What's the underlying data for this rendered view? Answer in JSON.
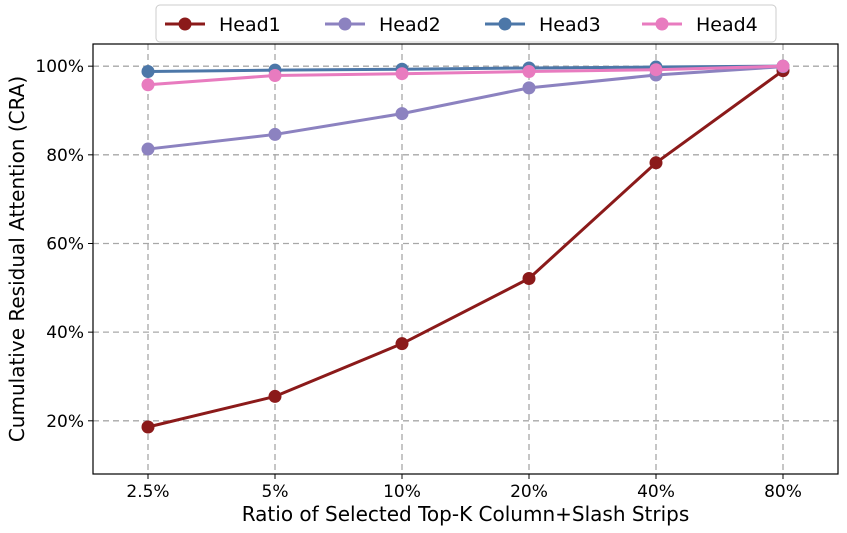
{
  "chart_data": {
    "type": "line",
    "title": "",
    "xlabel": "Ratio of Selected Top-K Column+Slash Strips",
    "ylabel": "Cumulative Residual Attention (CRA)",
    "categories": [
      "2.5%",
      "5%",
      "10%",
      "20%",
      "40%",
      "80%"
    ],
    "ylim": [
      8,
      105
    ],
    "yticks": [
      20,
      40,
      60,
      80,
      100
    ],
    "ytick_labels": [
      "20%",
      "40%",
      "60%",
      "80%",
      "100%"
    ],
    "grid": true,
    "legend_position": "top-center",
    "series": [
      {
        "name": "Head1",
        "color": "#8b1a1a",
        "values": [
          18.6,
          25.5,
          37.4,
          52.1,
          78.2,
          99.0
        ]
      },
      {
        "name": "Head2",
        "color": "#8c82c0",
        "values": [
          81.3,
          84.6,
          89.3,
          95.1,
          98.0,
          99.9
        ]
      },
      {
        "name": "Head3",
        "color": "#4c77a8",
        "values": [
          98.8,
          99.1,
          99.3,
          99.6,
          99.8,
          100.0
        ]
      },
      {
        "name": "Head4",
        "color": "#e87bbf",
        "values": [
          95.8,
          97.9,
          98.3,
          98.8,
          99.2,
          100.0
        ]
      }
    ]
  }
}
